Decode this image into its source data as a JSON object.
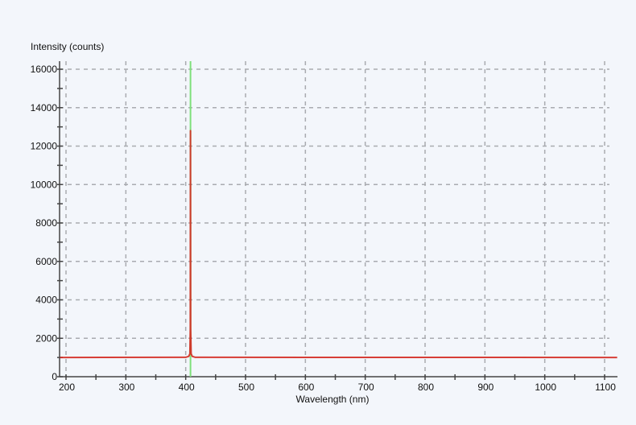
{
  "chart_data": {
    "type": "line",
    "xlabel": "Wavelength (nm)",
    "ylabel": "Intensity (counts)",
    "xlim": [
      190,
      1121
    ],
    "ylim": [
      0,
      16400
    ],
    "xticks": [
      200,
      300,
      400,
      500,
      600,
      700,
      800,
      900,
      1000,
      1100
    ],
    "yticks": [
      0,
      2000,
      4000,
      6000,
      8000,
      10000,
      12000,
      14000,
      16000
    ],
    "grid": true,
    "legend": "none",
    "series": [
      {
        "color": "#d42a20",
        "baseline": 1000,
        "peak": {
          "x": 408,
          "y": 12800
        },
        "x": [
          190,
          400,
          405,
          407,
          407.7,
          408,
          408.3,
          409,
          411,
          416,
          1121
        ],
        "y": [
          1000,
          1010,
          1060,
          1200,
          2500,
          12800,
          2500,
          1200,
          1060,
          1010,
          1000
        ]
      }
    ],
    "marker_line": {
      "x": 408,
      "color": "#7ee07a"
    }
  }
}
